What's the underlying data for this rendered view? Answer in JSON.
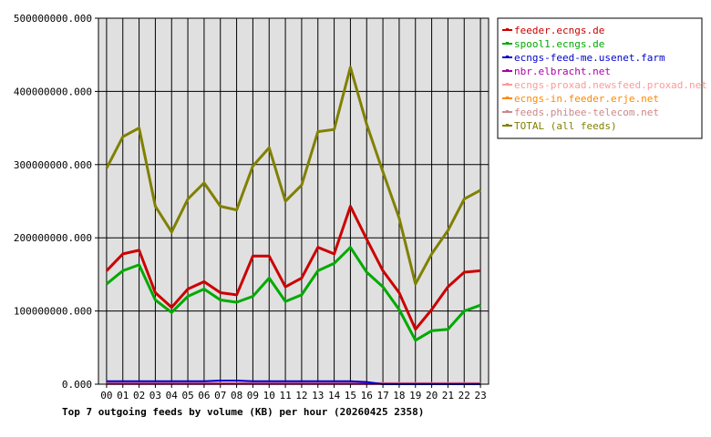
{
  "chart_data": {
    "type": "line",
    "title": "Top 7 outgoing feeds by volume (KB) per hour (20260425 2358)",
    "xlabel": "",
    "ylabel": "",
    "categories": [
      "00",
      "01",
      "02",
      "03",
      "04",
      "05",
      "06",
      "07",
      "08",
      "09",
      "10",
      "11",
      "12",
      "13",
      "14",
      "15",
      "16",
      "17",
      "18",
      "19",
      "20",
      "21",
      "22",
      "23"
    ],
    "yticks": [
      "0.000",
      "100000000.000",
      "200000000.000",
      "300000000.000",
      "400000000.000",
      "500000000.000"
    ],
    "ylim": [
      0,
      500000000
    ],
    "grid": true,
    "legend_position": "top-right",
    "series": [
      {
        "name": "feeder.ecngs.de",
        "color": "#cc0000",
        "values": [
          155000000,
          178000000,
          183000000,
          125000000,
          105000000,
          130000000,
          140000000,
          125000000,
          122000000,
          175000000,
          175000000,
          133000000,
          145000000,
          187000000,
          178000000,
          243000000,
          198000000,
          155000000,
          125000000,
          75000000,
          102000000,
          133000000,
          153000000,
          155000000
        ]
      },
      {
        "name": "spool1.ecngs.de",
        "color": "#00aa00",
        "values": [
          137000000,
          155000000,
          163000000,
          115000000,
          98000000,
          120000000,
          130000000,
          115000000,
          112000000,
          120000000,
          145000000,
          113000000,
          122000000,
          155000000,
          165000000,
          187000000,
          153000000,
          133000000,
          102000000,
          60000000,
          73000000,
          75000000,
          100000000,
          108000000
        ]
      },
      {
        "name": "ecngs-feed-me.usenet.farm",
        "color": "#0000cc",
        "values": [
          4000000,
          4000000,
          4000000,
          4000000,
          4000000,
          4000000,
          4000000,
          5000000,
          5000000,
          4000000,
          4000000,
          4000000,
          4000000,
          4000000,
          4000000,
          4000000,
          3000000,
          0,
          0,
          0,
          0,
          0,
          0,
          0
        ]
      },
      {
        "name": "nbr.elbracht.net",
        "color": "#aa00aa",
        "values": [
          500000,
          500000,
          500000,
          500000,
          500000,
          500000,
          500000,
          500000,
          500000,
          500000,
          500000,
          500000,
          500000,
          500000,
          500000,
          500000,
          500000,
          500000,
          500000,
          500000,
          500000,
          500000,
          500000,
          500000
        ]
      },
      {
        "name": "ecngs-proxad.newsfeed.proxad.net",
        "color": "#ff9999",
        "values": [
          0,
          0,
          0,
          0,
          0,
          0,
          0,
          0,
          0,
          0,
          0,
          0,
          0,
          0,
          0,
          0,
          0,
          0,
          0,
          0,
          0,
          0,
          0,
          0
        ]
      },
      {
        "name": "ecngs-in.feeder.erje.net",
        "color": "#ff8800",
        "values": [
          0,
          0,
          0,
          0,
          0,
          0,
          0,
          0,
          0,
          0,
          0,
          0,
          0,
          0,
          0,
          0,
          0,
          0,
          0,
          0,
          0,
          0,
          0,
          0
        ]
      },
      {
        "name": "feeds.phibee-telecom.net",
        "color": "#cc8888",
        "values": [
          1500000,
          1500000,
          1500000,
          1500000,
          1500000,
          1500000,
          1500000,
          1500000,
          1500000,
          1500000,
          1500000,
          1500000,
          1500000,
          1500000,
          1500000,
          1500000,
          1500000,
          1500000,
          1500000,
          1500000,
          1500000,
          1500000,
          1500000,
          1500000
        ]
      },
      {
        "name": "TOTAL (all feeds)",
        "color": "#808000",
        "values": [
          295000000,
          338000000,
          350000000,
          243000000,
          208000000,
          253000000,
          275000000,
          243000000,
          238000000,
          298000000,
          323000000,
          250000000,
          272000000,
          345000000,
          348000000,
          433000000,
          355000000,
          290000000,
          227000000,
          137000000,
          178000000,
          210000000,
          253000000,
          265000000
        ]
      }
    ]
  }
}
